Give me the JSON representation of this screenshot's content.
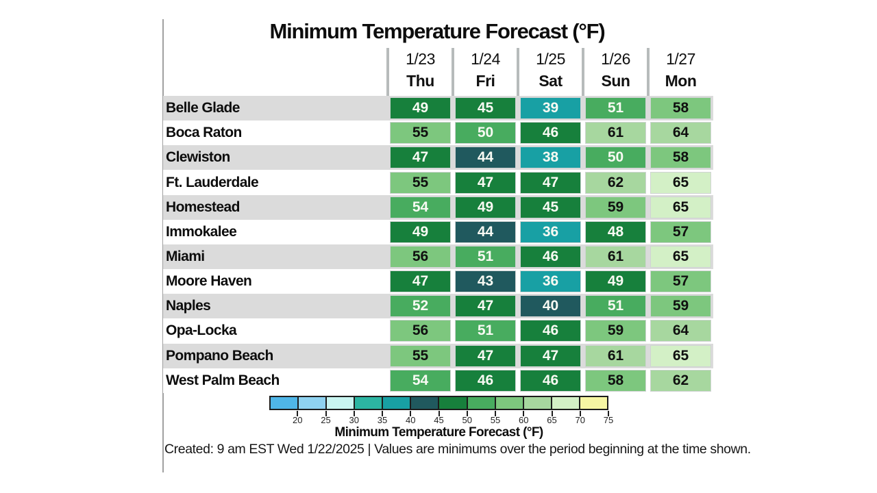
{
  "title": "Minimum Temperature Forecast (°F)",
  "footer": "Created: 9 am EST Wed 1/22/2025  |  Values are minimums over the period beginning at the time shown.",
  "table": {
    "columns": [
      {
        "date": "1/23",
        "day": "Thu"
      },
      {
        "date": "1/24",
        "day": "Fri"
      },
      {
        "date": "1/25",
        "day": "Sat"
      },
      {
        "date": "1/26",
        "day": "Sun"
      },
      {
        "date": "1/27",
        "day": "Mon"
      }
    ],
    "rows": [
      {
        "name": "Belle Glade",
        "values": [
          49,
          45,
          39,
          51,
          58
        ]
      },
      {
        "name": "Boca Raton",
        "values": [
          55,
          50,
          46,
          61,
          64
        ]
      },
      {
        "name": "Clewiston",
        "values": [
          47,
          44,
          38,
          50,
          58
        ]
      },
      {
        "name": "Ft. Lauderdale",
        "values": [
          55,
          47,
          47,
          62,
          65
        ]
      },
      {
        "name": "Homestead",
        "values": [
          54,
          49,
          45,
          59,
          65
        ]
      },
      {
        "name": "Immokalee",
        "values": [
          49,
          44,
          36,
          48,
          57
        ]
      },
      {
        "name": "Miami",
        "values": [
          56,
          51,
          46,
          61,
          65
        ]
      },
      {
        "name": "Moore Haven",
        "values": [
          47,
          43,
          36,
          49,
          57
        ]
      },
      {
        "name": "Naples",
        "values": [
          52,
          47,
          40,
          51,
          59
        ]
      },
      {
        "name": "Opa-Locka",
        "values": [
          56,
          51,
          46,
          59,
          64
        ]
      },
      {
        "name": "Pompano Beach",
        "values": [
          55,
          47,
          47,
          61,
          65
        ]
      },
      {
        "name": "West Palm Beach",
        "values": [
          54,
          46,
          46,
          58,
          62
        ]
      }
    ]
  },
  "colorbar": {
    "caption": "Minimum Temperature Forecast (°F)",
    "range_min": 15,
    "range_max": 75,
    "tick_values": [
      20,
      25,
      30,
      35,
      40,
      45,
      50,
      55,
      60,
      65,
      70,
      75
    ],
    "segments": [
      {
        "from": 15,
        "color": "#4fb6e8"
      },
      {
        "from": 20,
        "color": "#8fd2f0"
      },
      {
        "from": 25,
        "color": "#c8f4f0"
      },
      {
        "from": 30,
        "color": "#2cb5a2"
      },
      {
        "from": 35,
        "color": "#18a0a4"
      },
      {
        "from": 40,
        "color": "#20595e"
      },
      {
        "from": 45,
        "color": "#17803c"
      },
      {
        "from": 50,
        "color": "#48ac5f"
      },
      {
        "from": 55,
        "color": "#7dc77e"
      },
      {
        "from": 60,
        "color": "#a7d79f"
      },
      {
        "from": 65,
        "color": "#d3f0c6"
      },
      {
        "from": 70,
        "color": "#f5f5a3"
      }
    ]
  },
  "style_colors": {
    "row_band_gray": "#dbdbdb",
    "row_band_white": "#ffffff",
    "light_text": "#f8faf3",
    "dark_text": "#101010",
    "dark_text_min_value": 55
  },
  "chart_data": {
    "type": "heatmap",
    "title": "Minimum Temperature Forecast (°F)",
    "x_labels": [
      "1/23 Thu",
      "1/24 Fri",
      "1/25 Sat",
      "1/26 Sun",
      "1/27 Mon"
    ],
    "y_labels": [
      "Belle Glade",
      "Boca Raton",
      "Clewiston",
      "Ft. Lauderdale",
      "Homestead",
      "Immokalee",
      "Miami",
      "Moore Haven",
      "Naples",
      "Opa-Locka",
      "Pompano Beach",
      "West Palm Beach"
    ],
    "values": [
      [
        49,
        45,
        39,
        51,
        58
      ],
      [
        55,
        50,
        46,
        61,
        64
      ],
      [
        47,
        44,
        38,
        50,
        58
      ],
      [
        55,
        47,
        47,
        62,
        65
      ],
      [
        54,
        49,
        45,
        59,
        65
      ],
      [
        49,
        44,
        36,
        48,
        57
      ],
      [
        56,
        51,
        46,
        61,
        65
      ],
      [
        47,
        43,
        36,
        49,
        57
      ],
      [
        52,
        47,
        40,
        51,
        59
      ],
      [
        56,
        51,
        46,
        59,
        64
      ],
      [
        55,
        47,
        47,
        61,
        65
      ],
      [
        54,
        46,
        46,
        58,
        62
      ]
    ],
    "colorbar_label": "Minimum Temperature Forecast (°F)",
    "colorbar_ticks": [
      20,
      25,
      30,
      35,
      40,
      45,
      50,
      55,
      60,
      65,
      70,
      75
    ],
    "color_range": [
      15,
      75
    ],
    "annotation": "Created: 9 am EST Wed 1/22/2025  |  Values are minimums over the period beginning at the time shown."
  }
}
